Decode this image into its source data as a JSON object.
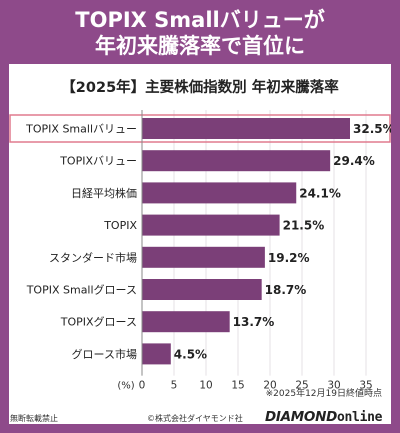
{
  "header": {
    "line1": "TOPIX Smallバリューが",
    "line2": "年初来騰落率で首位に"
  },
  "chart_data": {
    "type": "bar",
    "orientation": "horizontal",
    "title": "【2025年】主要株価指数別 年初来騰落率",
    "categories": [
      "TOPIX Smallバリュー",
      "TOPIXバリュー",
      "日経平均株価",
      "TOPIX",
      "スタンダード市場",
      "TOPIX Smallグロース",
      "TOPIXグロース",
      "グロース市場"
    ],
    "values": [
      32.5,
      29.4,
      24.1,
      21.5,
      19.2,
      18.7,
      13.7,
      4.5
    ],
    "value_labels": [
      "32.5%",
      "29.4%",
      "24.1%",
      "21.5%",
      "19.2%",
      "18.7%",
      "13.7%",
      "4.5%"
    ],
    "highlight_index": 0,
    "xlim": [
      0,
      35
    ],
    "xticks": [
      "0",
      "5",
      "10",
      "15",
      "20",
      "25",
      "30",
      "35"
    ],
    "xunit_label": "(%)",
    "grid": true,
    "colors": {
      "bar": "#7b3f78",
      "highlight_border": "#e07a8e",
      "grid": "#e6e0e6",
      "background": "#8e4a8a"
    }
  },
  "footer": {
    "note": "※2025年12月19日終値時点",
    "disclaimer": "無断転載禁止",
    "copyright": "©株式会社ダイヤモンド社",
    "brand_main": "DIAMOND",
    "brand_sub": "online"
  }
}
